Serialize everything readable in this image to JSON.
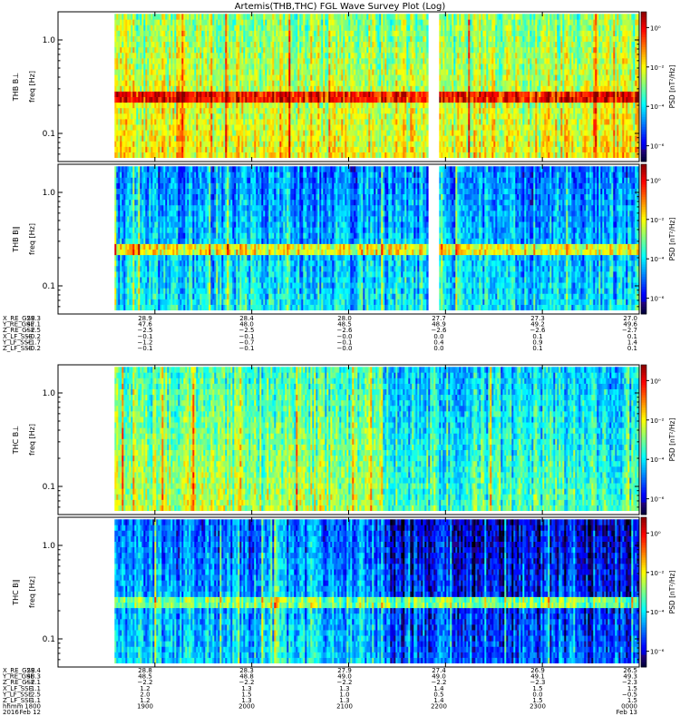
{
  "title": "Artemis(THB,THC) FGL Wave Survey Plot (Log)",
  "chart_data": [
    {
      "type": "heatmap",
      "id": "thb_perp",
      "probe": "THB",
      "ylabel_line1": "THB B⊥",
      "ylabel_line2": "freq [Hz]",
      "colorbar_label": "PSD [nT²/Hz]",
      "yscale": "log",
      "ylim": [
        0.05,
        2.0
      ],
      "yticks": [
        {
          "value": 1.0,
          "label": "1.0"
        },
        {
          "value": 0.1,
          "label": "0.1"
        }
      ],
      "colorbar_ticks": [
        {
          "exp": 0,
          "label": "10⁰"
        },
        {
          "exp": -2,
          "label": "10⁻²"
        },
        {
          "exp": -4,
          "label": "10⁻⁴"
        },
        {
          "exp": -6,
          "label": "10⁻⁶"
        }
      ],
      "colorbar_range_log10": [
        -6.8,
        0.8
      ],
      "data_start_hhmm": "1835",
      "data_gap_hhmm": [
        "2149",
        "2155"
      ],
      "bright_band_hz": 0.25,
      "psd_log10_summary": {
        "background": -2.8,
        "band": -0.6,
        "band_peak": -0.2
      }
    },
    {
      "type": "heatmap",
      "id": "thb_par",
      "probe": "THB",
      "ylabel_line1": "THB B∥",
      "ylabel_line2": "freq [Hz]",
      "colorbar_label": "PSD [nT²/Hz]",
      "yscale": "log",
      "ylim": [
        0.05,
        2.0
      ],
      "yticks": [
        {
          "value": 1.0,
          "label": "1.0"
        },
        {
          "value": 0.1,
          "label": "0.1"
        }
      ],
      "colorbar_ticks": [
        {
          "exp": 0,
          "label": "10⁰"
        },
        {
          "exp": -2,
          "label": "10⁻²"
        },
        {
          "exp": -4,
          "label": "10⁻⁴"
        },
        {
          "exp": -6,
          "label": "10⁻⁶"
        }
      ],
      "colorbar_range_log10": [
        -6.8,
        0.8
      ],
      "data_start_hhmm": "1835",
      "data_gap_hhmm": [
        "2149",
        "2155"
      ],
      "bright_band_hz": 0.25,
      "psd_log10_summary": {
        "background": -4.8,
        "band": -2.5,
        "band_peak": -1.6
      }
    },
    {
      "type": "heatmap",
      "id": "thc_perp",
      "probe": "THC",
      "ylabel_line1": "THC B⊥",
      "ylabel_line2": "freq [Hz]",
      "colorbar_label": "PSD [nT²/Hz]",
      "yscale": "log",
      "ylim": [
        0.05,
        2.0
      ],
      "yticks": [
        {
          "value": 1.0,
          "label": "1.0"
        },
        {
          "value": 0.1,
          "label": "0.1"
        }
      ],
      "colorbar_ticks": [
        {
          "exp": 0,
          "label": "10⁰"
        },
        {
          "exp": -2,
          "label": "10⁻²"
        },
        {
          "exp": -4,
          "label": "10⁻⁴"
        },
        {
          "exp": -6,
          "label": "10⁻⁶"
        }
      ],
      "colorbar_range_log10": [
        -6.8,
        0.8
      ],
      "data_start_hhmm": "1835",
      "data_gap_hhmm": [],
      "bright_band_hz": null,
      "psd_log10_summary": {
        "background": -3.4,
        "quiet_after_2120": -4.2
      }
    },
    {
      "type": "heatmap",
      "id": "thc_par",
      "probe": "THC",
      "ylabel_line1": "THC B∥",
      "ylabel_line2": "freq [Hz]",
      "colorbar_label": "PSD [nT²/Hz]",
      "yscale": "log",
      "ylim": [
        0.05,
        2.0
      ],
      "yticks": [
        {
          "value": 1.0,
          "label": "1.0"
        },
        {
          "value": 0.1,
          "label": "0.1"
        }
      ],
      "colorbar_ticks": [
        {
          "exp": 0,
          "label": "10⁰"
        },
        {
          "exp": -2,
          "label": "10⁻²"
        },
        {
          "exp": -4,
          "label": "10⁻⁴"
        },
        {
          "exp": -6,
          "label": "10⁻⁶"
        }
      ],
      "colorbar_range_log10": [
        -6.8,
        0.8
      ],
      "data_start_hhmm": "1835",
      "data_gap_hhmm": [],
      "bright_band_hz": 0.25,
      "psd_log10_summary": {
        "background": -5.0,
        "quiet_after_2120": -6.0,
        "band": -3.5
      }
    }
  ],
  "orbit_tables": [
    {
      "id": "thb_orbit",
      "rows": [
        {
          "label": "X_RE_GSE",
          "values": [
            "29.3",
            "28.9",
            "28.4",
            "28.0",
            "27.7",
            "27.3",
            "27.0"
          ]
        },
        {
          "label": "Y_RE_GSE",
          "values": [
            "47.1",
            "47.6",
            "48.0",
            "48.5",
            "48.9",
            "49.2",
            "49.6"
          ]
        },
        {
          "label": "Z_RE_GSE",
          "values": [
            "−2.5",
            "−2.5",
            "−2.5",
            "−2.6",
            "−2.6",
            "−2.6",
            "−2.7"
          ]
        },
        {
          "label": "X_LF_SSE",
          "values": [
            "−0.2",
            "−0.1",
            "−0.1",
            "−0.0",
            "0.0",
            "0.1",
            "0.1"
          ]
        },
        {
          "label": "Y_LF_SSE",
          "values": [
            "−1.7",
            "−1.2",
            "−0.7",
            "−0.1",
            "0.4",
            "0.9",
            "1.4"
          ]
        },
        {
          "label": "Z_LF_SSE",
          "values": [
            "−0.2",
            "−0.1",
            "−0.1",
            "−0.0",
            "0.0",
            "0.1",
            "0.1"
          ]
        }
      ]
    },
    {
      "id": "thc_orbit",
      "rows": [
        {
          "label": "X_RE_GSE",
          "values": [
            "29.4",
            "28.8",
            "28.3",
            "27.9",
            "27.4",
            "26.9",
            "26.5"
          ]
        },
        {
          "label": "Y_RE_GSE",
          "values": [
            "48.3",
            "48.5",
            "48.8",
            "49.0",
            "49.0",
            "49.1",
            "49.3"
          ]
        },
        {
          "label": "Z_RE_GSE",
          "values": [
            "−2.1",
            "−2.2",
            "−2.2",
            "−2.2",
            "−2.2",
            "−2.3",
            "−2.3"
          ]
        },
        {
          "label": "X_LF_SSE",
          "values": [
            "1.1",
            "1.2",
            "1.3",
            "1.3",
            "1.4",
            "1.5",
            "1.5"
          ]
        },
        {
          "label": "Y_LF_SSE",
          "values": [
            "2.5",
            "2.0",
            "1.5",
            "1.0",
            "0.5",
            "0.0",
            "−0.5"
          ]
        },
        {
          "label": "Z_LF_SSE",
          "values": [
            "1.1",
            "1.2",
            "1.3",
            "1.3",
            "1.4",
            "1.5",
            "1.5"
          ]
        }
      ],
      "time_rows": [
        {
          "label": "hhmm",
          "values": [
            "1800",
            "1900",
            "2000",
            "2100",
            "2200",
            "2300",
            "0000"
          ]
        },
        {
          "label": "2016",
          "values": [
            "Feb 12",
            "",
            "",
            "",
            "",
            "",
            "Feb 13"
          ]
        }
      ]
    }
  ],
  "colors": {
    "axis": "#000000",
    "background": "#ffffff",
    "gap": "#ffffff"
  }
}
